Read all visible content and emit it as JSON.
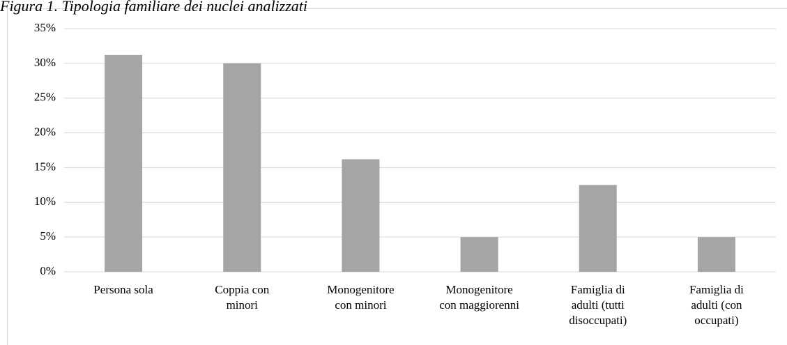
{
  "chart_data": {
    "type": "bar",
    "title": "Figura 1. Tipologia familiare dei nuclei analizzati",
    "categories": [
      "Persona sola",
      "Coppia con\nminori",
      "Monogenitore\ncon minori",
      "Monogenitore\ncon maggiorenni",
      "Famiglia di\nadulti (tutti\ndisoccupati)",
      "Famiglia di\nadulti (con\noccupati)"
    ],
    "values": [
      31.2,
      30.0,
      16.2,
      5.0,
      12.5,
      5.0
    ],
    "color": "#a5a5a5",
    "ylim": [
      0,
      35
    ],
    "yticks": [
      {
        "value": 0,
        "label": "0%"
      },
      {
        "value": 5,
        "label": "5%"
      },
      {
        "value": 10,
        "label": "10%"
      },
      {
        "value": 15,
        "label": "15%"
      },
      {
        "value": 20,
        "label": "20%"
      },
      {
        "value": 25,
        "label": "25%"
      },
      {
        "value": 30,
        "label": "30%"
      },
      {
        "value": 35,
        "label": "35%"
      }
    ],
    "grid": true
  }
}
